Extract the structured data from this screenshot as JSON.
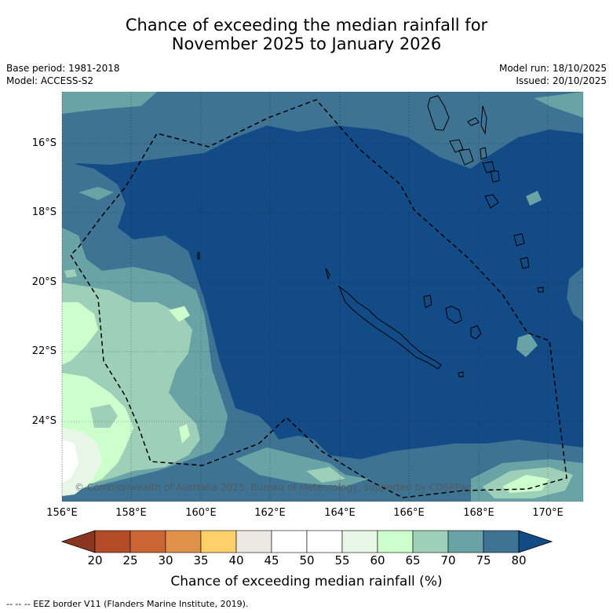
{
  "title_line1": "Chance of exceeding the median rainfall for",
  "title_line2": "November 2025 to January 2026",
  "base_period": "Base period: 1981-2018",
  "model": "Model: ACCESS-S2",
  "model_run": "Model run: 18/10/2025",
  "issued": "Issued: 20/10/2025",
  "copyright": "© Commonwealth of Australia 2025, Bureau of Meteorology, supported by COSPPac",
  "lat_labels": [
    "16°S",
    "18°S",
    "20°S",
    "22°S",
    "24°S"
  ],
  "lon_labels": [
    "156°E",
    "158°E",
    "160°E",
    "162°E",
    "164°E",
    "166°E",
    "168°E",
    "170°E"
  ],
  "colorbar": {
    "ticks": [
      "20",
      "25",
      "30",
      "35",
      "40",
      "45",
      "50",
      "55",
      "60",
      "65",
      "70",
      "75",
      "80"
    ],
    "colors": [
      "#8c3520",
      "#b34a28",
      "#cc6533",
      "#e0924a",
      "#fdd06a",
      "#ece8e4",
      "#ffffff",
      "#ffffff",
      "#e8f6e8",
      "#ccffcc",
      "#9ecfb8",
      "#6aa3a6",
      "#3e7394",
      "#124b86"
    ],
    "label": "Chance of exceeding median rainfall (%)"
  },
  "footer": "--  --  -- EEZ border V11 (Flanders Marine Institute, 2019)."
}
